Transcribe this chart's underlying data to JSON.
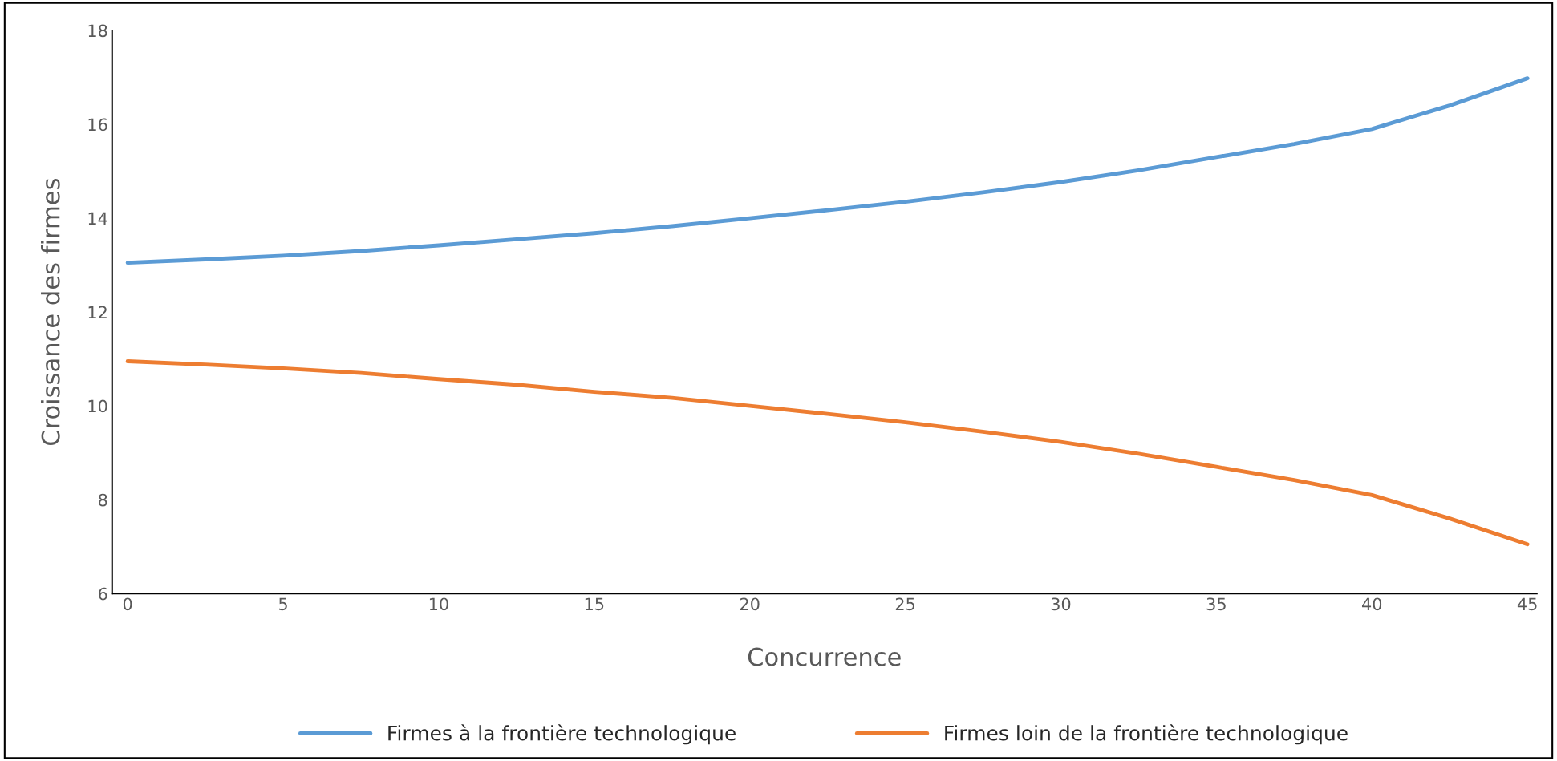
{
  "chart_data": {
    "type": "line",
    "xlabel": "Concurrence",
    "ylabel": "Croissance des firmes",
    "x": [
      0,
      2.5,
      5,
      7.5,
      10,
      12.5,
      15,
      17.5,
      20,
      22.5,
      25,
      27.5,
      30,
      32.5,
      35,
      37.5,
      40,
      42.5,
      45
    ],
    "series": [
      {
        "name": "Firmes à la frontière technologique",
        "color": "#5b9bd5",
        "values": [
          13.05,
          13.12,
          13.2,
          13.3,
          13.42,
          13.55,
          13.68,
          13.83,
          14.0,
          14.17,
          14.35,
          14.55,
          14.77,
          15.02,
          15.3,
          15.58,
          15.9,
          16.4,
          16.98
        ]
      },
      {
        "name": "Firmes loin de la frontière technologique",
        "color": "#ed7d31",
        "values": [
          10.95,
          10.88,
          10.8,
          10.7,
          10.57,
          10.45,
          10.3,
          10.17,
          10.0,
          9.83,
          9.65,
          9.45,
          9.23,
          8.98,
          8.7,
          8.42,
          8.1,
          7.6,
          7.05
        ]
      }
    ],
    "xlim": [
      -0.5,
      45.3
    ],
    "xticks": [
      0,
      5,
      10,
      15,
      20,
      25,
      30,
      35,
      40,
      45
    ],
    "ylim": [
      6,
      18
    ],
    "yticks": [
      6,
      8,
      10,
      12,
      14,
      16,
      18
    ],
    "grid": false,
    "legend": "bottom",
    "marker": "none",
    "line_style": "solid"
  }
}
